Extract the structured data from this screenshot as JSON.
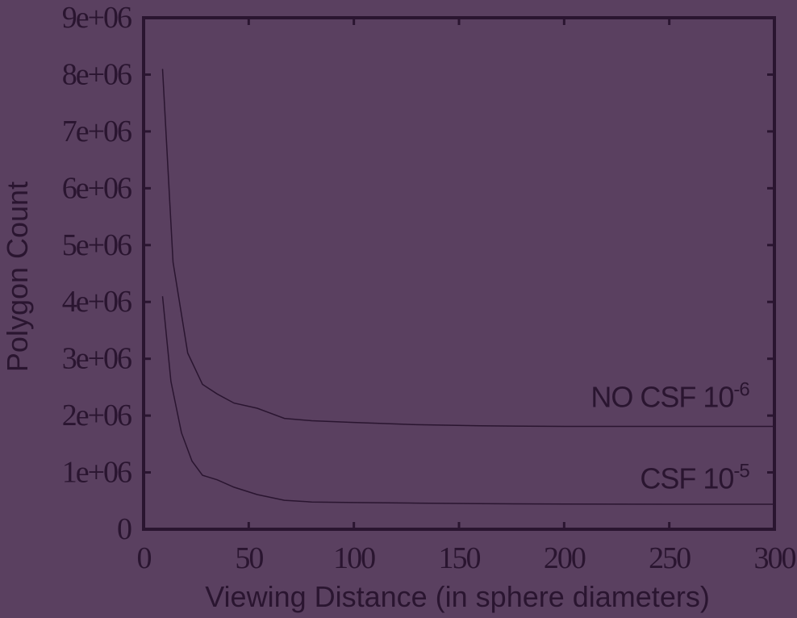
{
  "chart_data": {
    "type": "line",
    "xlabel": "Viewing Distance (in sphere diameters)",
    "ylabel": "Polygon Count",
    "xlim": [
      0,
      300
    ],
    "ylim": [
      0,
      9000000
    ],
    "x_ticks": [
      0,
      50,
      100,
      150,
      200,
      250,
      300
    ],
    "x_tick_labels": [
      "0",
      "50",
      "100",
      "150",
      "200",
      "250",
      "300"
    ],
    "y_ticks": [
      0,
      1000000,
      2000000,
      3000000,
      4000000,
      5000000,
      6000000,
      7000000,
      8000000,
      9000000
    ],
    "y_tick_labels": [
      "0",
      "1e+06",
      "2e+06",
      "3e+06",
      "4e+06",
      "5e+06",
      "6e+06",
      "7e+06",
      "8e+06",
      "9e+06"
    ],
    "grid": false,
    "colors": {
      "background": "#5a4060",
      "axes": "#2a1530",
      "line": "#2a1530"
    },
    "series": [
      {
        "x": [
          9,
          14,
          21,
          28,
          35,
          43,
          54,
          67,
          80,
          100,
          130,
          160,
          200,
          250,
          300
        ],
        "y": [
          8100000,
          4700000,
          3100000,
          2550000,
          2380000,
          2220000,
          2130000,
          1950000,
          1910000,
          1880000,
          1840000,
          1820000,
          1810000,
          1810000,
          1810000
        ]
      },
      {
        "x": [
          9,
          13,
          18,
          23,
          28,
          35,
          43,
          54,
          67,
          80,
          100,
          130,
          160,
          200,
          250,
          300
        ],
        "y": [
          4100000,
          2600000,
          1700000,
          1200000,
          950000,
          870000,
          740000,
          610000,
          510000,
          480000,
          470000,
          460000,
          450000,
          445000,
          440000,
          440000
        ]
      }
    ],
    "annotations": [
      {
        "text": "NO CSF 10",
        "sup": "-6",
        "x": 288,
        "y": 2150000
      },
      {
        "text": "CSF 10",
        "sup": "-5",
        "x": 288,
        "y": 720000
      }
    ]
  }
}
